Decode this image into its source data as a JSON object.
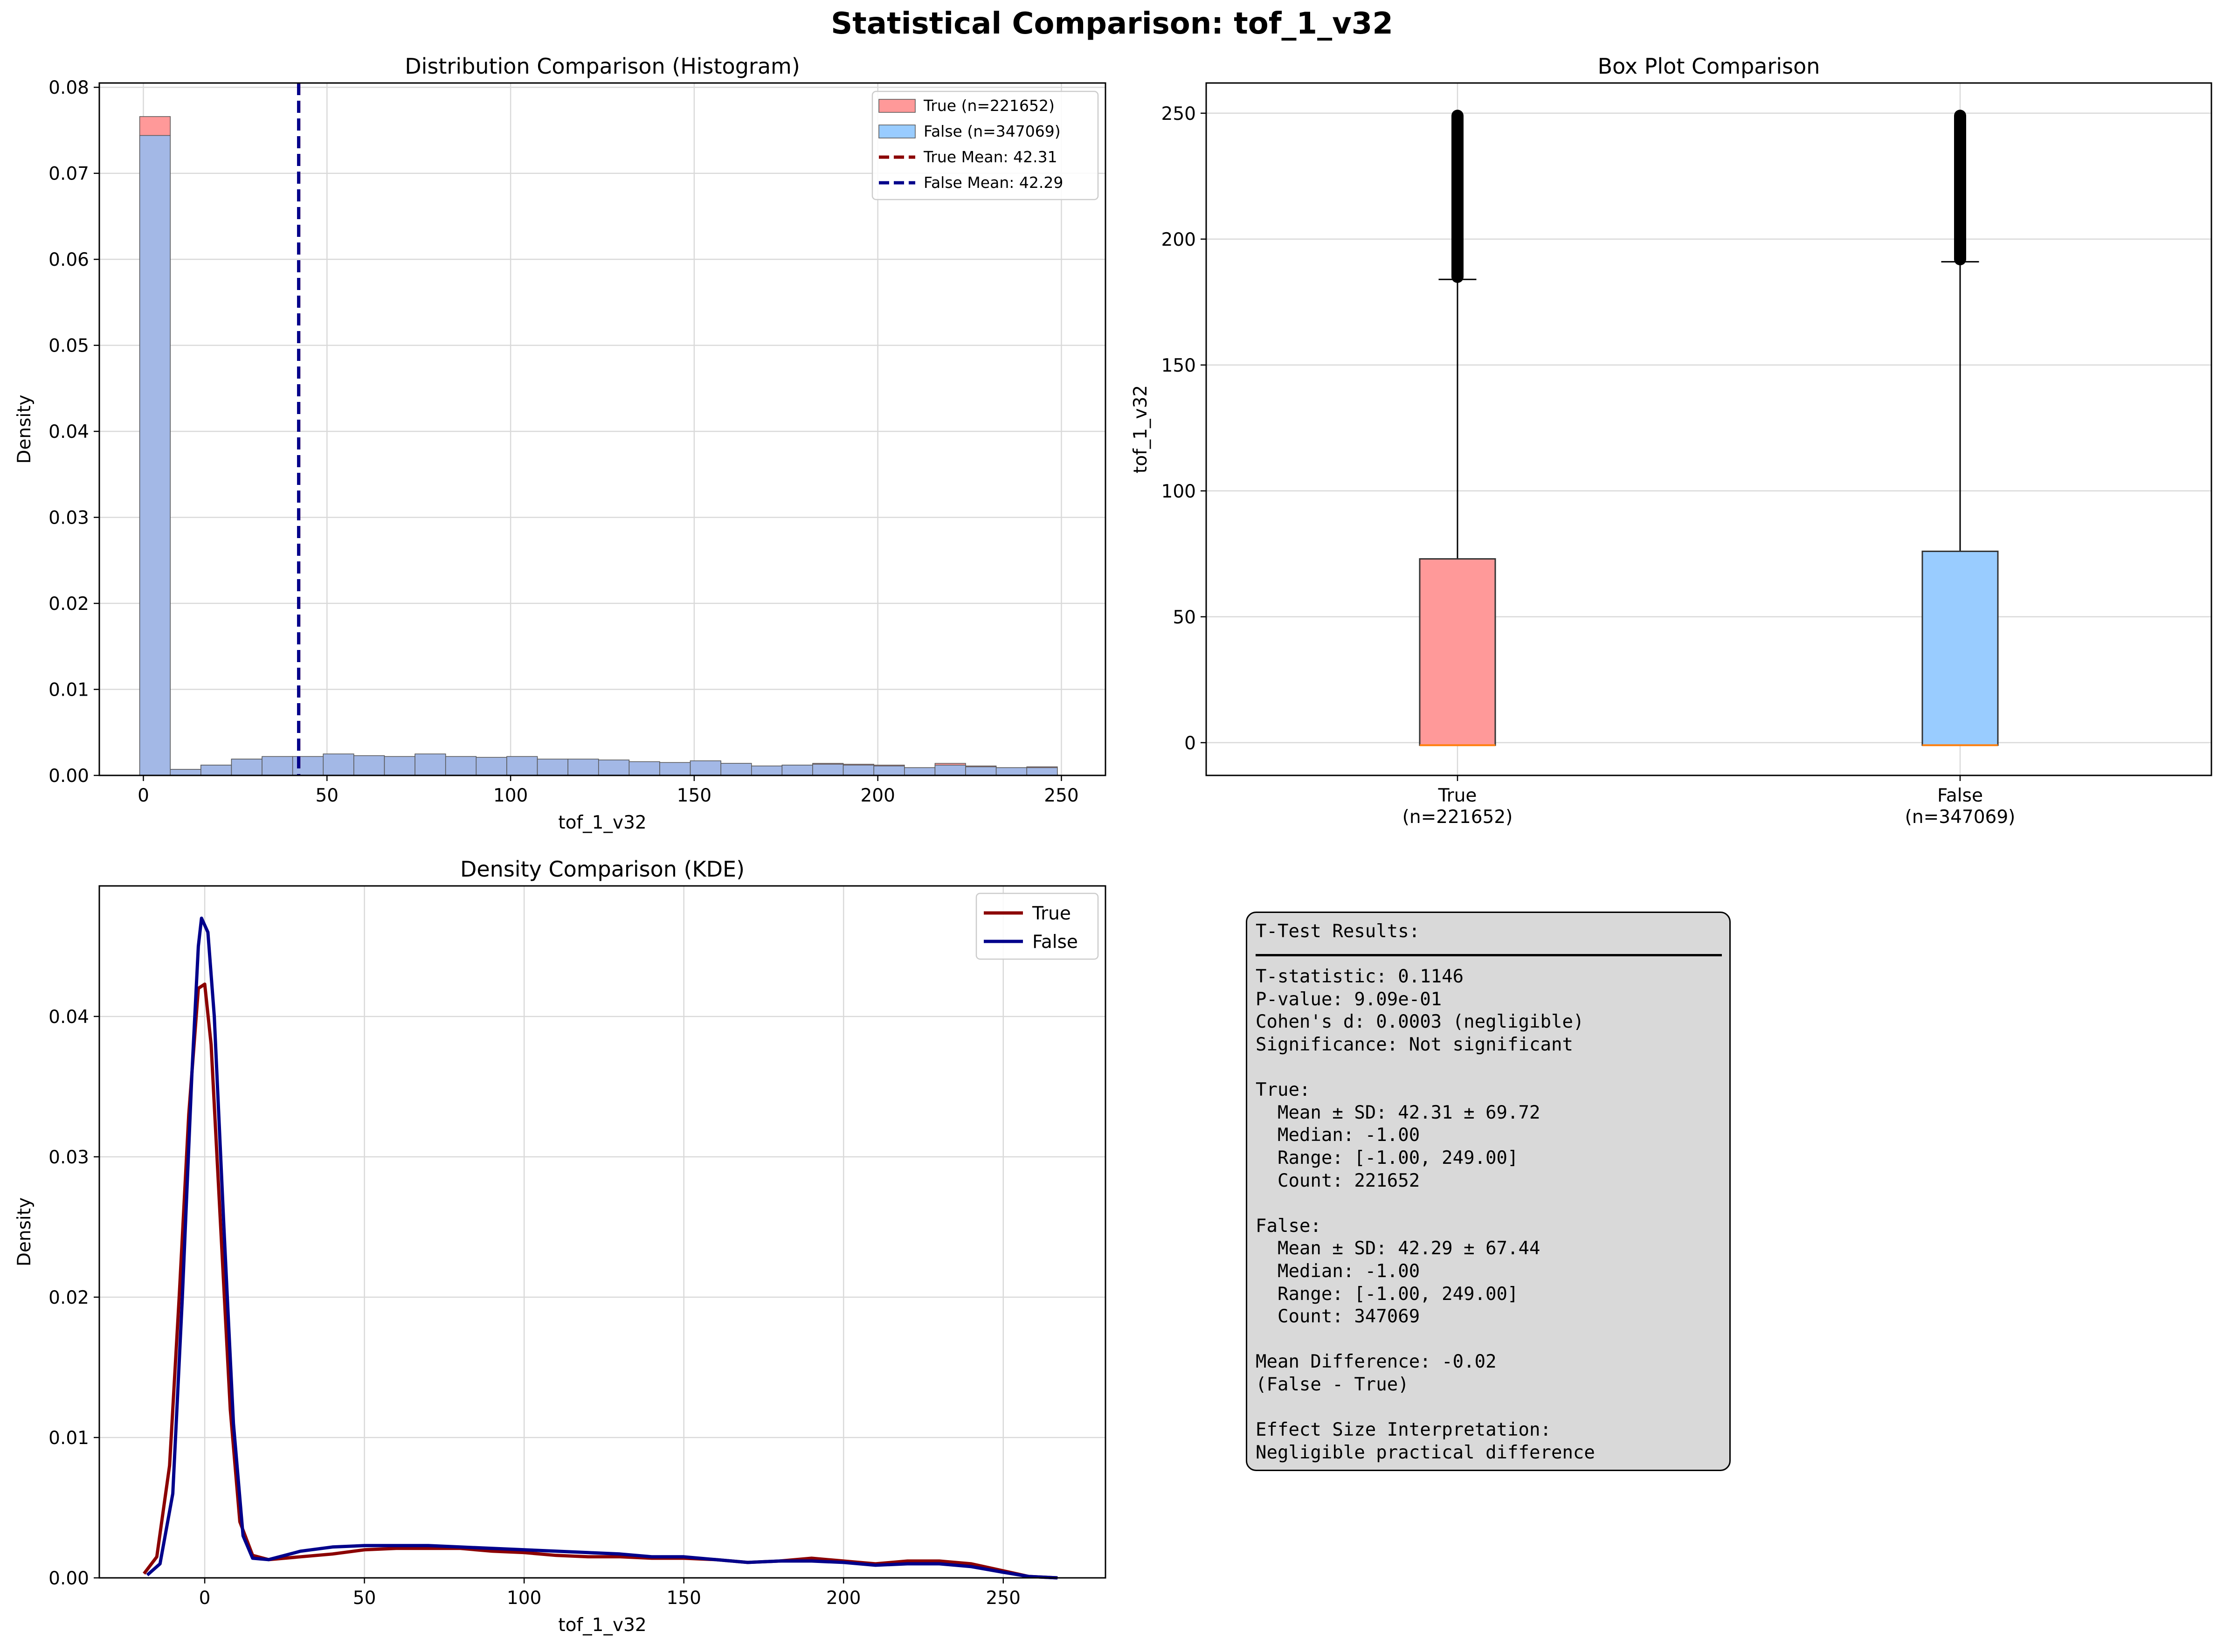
{
  "suptitle": "Statistical Comparison: tof_1_v32",
  "colors": {
    "true_fill": "#ff9999",
    "false_fill": "#99ccff",
    "overlap_fill": "#a3b8e6",
    "true_line": "#8b0000",
    "false_line": "#00008b",
    "median": "#ff7f0e",
    "grid": "#d9d9d9"
  },
  "chart_data": [
    {
      "type": "bar",
      "title": "Distribution Comparison (Histogram)",
      "xlabel": "tof_1_v32",
      "ylabel": "Density",
      "xlim": [
        -12,
        262
      ],
      "ylim": [
        0,
        0.0805
      ],
      "xticks": [
        0,
        50,
        100,
        150,
        200,
        250
      ],
      "xtick_labels": [
        "0",
        "50",
        "100",
        "150",
        "200",
        "250"
      ],
      "yticks": [
        0,
        0.01,
        0.02,
        0.03,
        0.04,
        0.05,
        0.06,
        0.07,
        0.08
      ],
      "ytick_labels": [
        "0.00",
        "0.01",
        "0.02",
        "0.03",
        "0.04",
        "0.05",
        "0.06",
        "0.07",
        "0.08"
      ],
      "grid": true,
      "legend_position": "top-right",
      "bin_start": -1,
      "bin_width": 8.33,
      "series": [
        {
          "name": "True (n=221652)",
          "values": [
            0.0766,
            0.0007,
            0.0012,
            0.0019,
            0.0021,
            0.002,
            0.0023,
            0.0022,
            0.0021,
            0.0024,
            0.0021,
            0.002,
            0.0021,
            0.0018,
            0.0018,
            0.0017,
            0.0015,
            0.0014,
            0.0016,
            0.0014,
            0.0011,
            0.0012,
            0.0014,
            0.0013,
            0.0012,
            0.0009,
            0.0014,
            0.0011,
            0.0009,
            0.001
          ]
        },
        {
          "name": "False (n=347069)",
          "values": [
            0.0744,
            0.0007,
            0.0012,
            0.0019,
            0.0022,
            0.0022,
            0.0025,
            0.0023,
            0.0022,
            0.0025,
            0.0022,
            0.0021,
            0.0022,
            0.0019,
            0.0019,
            0.0018,
            0.0016,
            0.0015,
            0.0017,
            0.0014,
            0.0011,
            0.0012,
            0.0013,
            0.0012,
            0.0011,
            0.0009,
            0.0012,
            0.001,
            0.0009,
            0.0009
          ]
        }
      ],
      "mean_lines": [
        {
          "name": "True Mean: 42.31",
          "value": 42.31
        },
        {
          "name": "False Mean: 42.29",
          "value": 42.29
        }
      ]
    },
    {
      "type": "box",
      "title": "Box Plot Comparison",
      "ylabel": "tof_1_v32",
      "ylim": [
        -13,
        262
      ],
      "yticks": [
        0,
        50,
        100,
        150,
        200,
        250
      ],
      "ytick_labels": [
        "0",
        "50",
        "100",
        "150",
        "200",
        "250"
      ],
      "grid": true,
      "categories": [
        "True\n(n=221652)",
        "False\n(n=347069)"
      ],
      "series": [
        {
          "name": "True",
          "q1": -1,
          "median": -1,
          "q3": 73,
          "whisker_low": -1,
          "whisker_high": 184,
          "fliers": [
            185,
            249
          ]
        },
        {
          "name": "False",
          "q1": -1,
          "median": -1,
          "q3": 76,
          "whisker_low": -1,
          "whisker_high": 191,
          "fliers": [
            192,
            249
          ]
        }
      ]
    },
    {
      "type": "line",
      "title": "Density Comparison (KDE)",
      "xlabel": "tof_1_v32",
      "ylabel": "Density",
      "xlim": [
        -33,
        282
      ],
      "ylim": [
        0,
        0.0493
      ],
      "xticks": [
        0,
        50,
        100,
        150,
        200,
        250
      ],
      "xtick_labels": [
        "0",
        "50",
        "100",
        "150",
        "200",
        "250"
      ],
      "yticks": [
        0,
        0.01,
        0.02,
        0.03,
        0.04
      ],
      "ytick_labels": [
        "0.00",
        "0.01",
        "0.02",
        "0.03",
        "0.04"
      ],
      "grid": true,
      "legend_position": "top-right",
      "series": [
        {
          "name": "True",
          "points": [
            [
              -19,
              0.0003
            ],
            [
              -15,
              0.0015
            ],
            [
              -11,
              0.008
            ],
            [
              -8,
              0.02
            ],
            [
              -5,
              0.033
            ],
            [
              -2,
              0.042
            ],
            [
              0,
              0.0423
            ],
            [
              2,
              0.038
            ],
            [
              5,
              0.025
            ],
            [
              8,
              0.012
            ],
            [
              11,
              0.004
            ],
            [
              15,
              0.0016
            ],
            [
              20,
              0.0013
            ],
            [
              30,
              0.0015
            ],
            [
              40,
              0.0017
            ],
            [
              50,
              0.002
            ],
            [
              60,
              0.0021
            ],
            [
              70,
              0.0021
            ],
            [
              80,
              0.0021
            ],
            [
              90,
              0.0019
            ],
            [
              100,
              0.0018
            ],
            [
              110,
              0.0016
            ],
            [
              120,
              0.0015
            ],
            [
              130,
              0.0015
            ],
            [
              140,
              0.0014
            ],
            [
              150,
              0.0014
            ],
            [
              160,
              0.0013
            ],
            [
              170,
              0.0011
            ],
            [
              180,
              0.0012
            ],
            [
              190,
              0.0014
            ],
            [
              200,
              0.0012
            ],
            [
              210,
              0.001
            ],
            [
              220,
              0.0012
            ],
            [
              230,
              0.0012
            ],
            [
              240,
              0.001
            ],
            [
              250,
              0.0005
            ],
            [
              258,
              0.0001
            ],
            [
              267,
              0.0
            ]
          ]
        },
        {
          "name": "False",
          "points": [
            [
              -18,
              0.0002
            ],
            [
              -14,
              0.001
            ],
            [
              -10,
              0.006
            ],
            [
              -7,
              0.02
            ],
            [
              -4,
              0.036
            ],
            [
              -2,
              0.045
            ],
            [
              -1,
              0.047
            ],
            [
              1,
              0.046
            ],
            [
              3,
              0.04
            ],
            [
              6,
              0.025
            ],
            [
              9,
              0.011
            ],
            [
              12,
              0.003
            ],
            [
              15,
              0.0014
            ],
            [
              20,
              0.0013
            ],
            [
              30,
              0.0019
            ],
            [
              40,
              0.0022
            ],
            [
              50,
              0.0023
            ],
            [
              60,
              0.0023
            ],
            [
              70,
              0.0023
            ],
            [
              80,
              0.0022
            ],
            [
              90,
              0.0021
            ],
            [
              100,
              0.002
            ],
            [
              110,
              0.0019
            ],
            [
              120,
              0.0018
            ],
            [
              130,
              0.0017
            ],
            [
              140,
              0.0015
            ],
            [
              150,
              0.0015
            ],
            [
              160,
              0.0013
            ],
            [
              170,
              0.0011
            ],
            [
              180,
              0.0012
            ],
            [
              190,
              0.0012
            ],
            [
              200,
              0.0011
            ],
            [
              210,
              0.0009
            ],
            [
              220,
              0.001
            ],
            [
              230,
              0.001
            ],
            [
              240,
              0.0008
            ],
            [
              250,
              0.0004
            ],
            [
              258,
              0.0001
            ],
            [
              267,
              0.0
            ]
          ]
        }
      ]
    }
  ],
  "stats_text": "T-Test Results:\n\nT-statistic: 0.1146\nP-value: 9.09e-01\nCohen's d: 0.0003 (negligible)\nSignificance: Not significant\n\nTrue:\n  Mean ± SD: 42.31 ± 69.72\n  Median: -1.00\n  Range: [-1.00, 249.00]\n  Count: 221652\n\nFalse:\n  Mean ± SD: 42.29 ± 67.44\n  Median: -1.00\n  Range: [-1.00, 249.00]\n  Count: 347069\n\nMean Difference: -0.02\n(False - True)\n\nEffect Size Interpretation:\nNegligible practical difference"
}
